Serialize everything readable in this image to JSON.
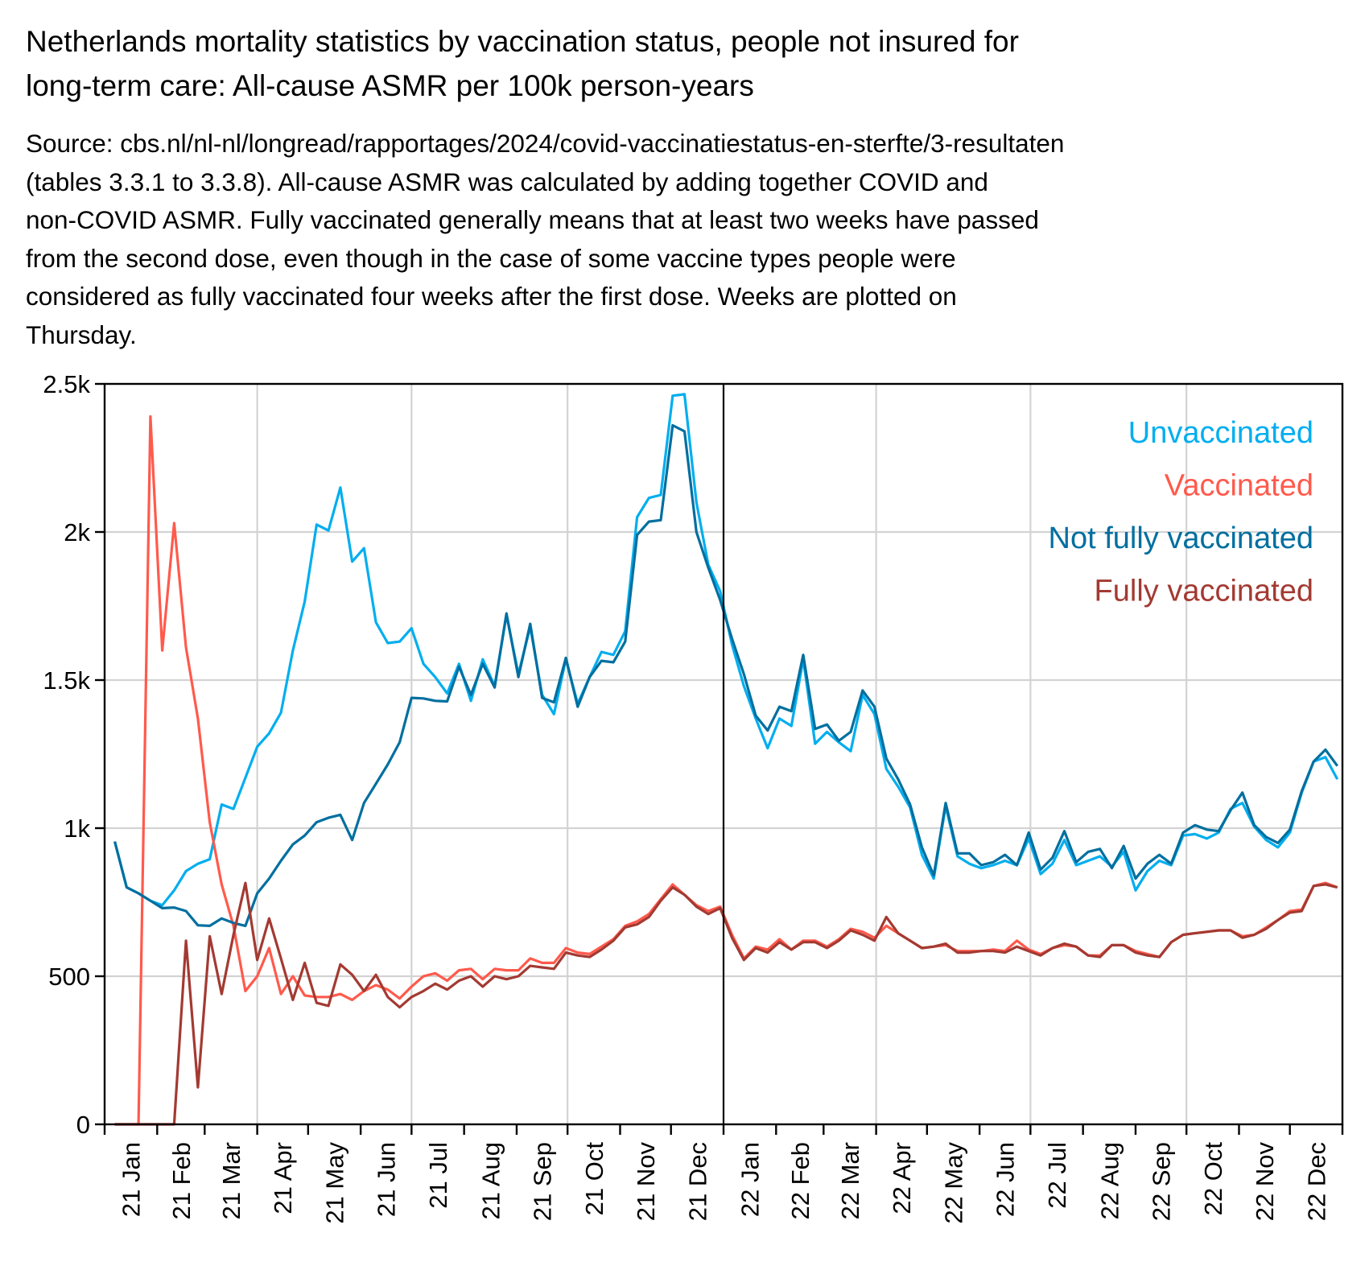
{
  "title": [
    "Netherlands mortality statistics by vaccination status, people not insured for",
    "long-term care: All-cause ASMR per 100k person-years"
  ],
  "subtitle": [
    "Source: cbs.nl/nl-nl/longread/rapportages/2024/covid-vaccinatiestatus-en-sterfte/3-resultaten",
    "(tables 3.3.1 to 3.3.8). All-cause ASMR was calculated by adding together COVID and",
    "non-COVID ASMR. Fully vaccinated generally means that at least two weeks have passed",
    "from the second dose, even though in the case of some vaccine types people were",
    "considered as fully vaccinated four weeks after the first dose. Weeks are plotted on",
    "Thursday."
  ],
  "chart_data": {
    "type": "line",
    "x_start": "2021-01-07",
    "x_step_days": 7,
    "xlim": [
      "2021-01-01",
      "2023-01-01"
    ],
    "ylim": [
      0,
      2500
    ],
    "yticks": [
      0,
      500,
      1000,
      1500,
      2000,
      2500
    ],
    "ytick_labels": [
      "0",
      "500",
      "1k",
      "1.5k",
      "2k",
      "2.5k"
    ],
    "xtick_labels": [
      "21 Jan",
      "21 Feb",
      "21 Mar",
      "21 Apr",
      "21 May",
      "21 Jun",
      "21 Jul",
      "21 Aug",
      "21 Sep",
      "21 Oct",
      "21 Nov",
      "21 Dec",
      "22 Jan",
      "22 Feb",
      "22 Mar",
      "22 Apr",
      "22 May",
      "22 Jun",
      "22 Jul",
      "22 Aug",
      "22 Sep",
      "22 Oct",
      "22 Nov",
      "22 Dec"
    ],
    "grid": true,
    "vertical_marker": "2022-01-01",
    "legend_position": "top-right",
    "series": [
      {
        "name": "Unvaccinated",
        "color": "#00AEEF",
        "values": [
          955,
          800,
          780,
          755,
          740,
          790,
          855,
          880,
          895,
          1080,
          1065,
          1170,
          1275,
          1320,
          1390,
          1600,
          1765,
          2025,
          2005,
          2150,
          1900,
          1945,
          1695,
          1625,
          1630,
          1675,
          1555,
          1510,
          1455,
          1555,
          1430,
          1570,
          1480,
          1720,
          1520,
          1680,
          1450,
          1385,
          1570,
          1420,
          1510,
          1595,
          1585,
          1665,
          2050,
          2115,
          2125,
          2460,
          2465,
          2100,
          1890,
          1800,
          1620,
          1480,
          1370,
          1270,
          1370,
          1345,
          1570,
          1285,
          1325,
          1290,
          1260,
          1450,
          1385,
          1200,
          1140,
          1070,
          910,
          830,
          1075,
          905,
          880,
          865,
          875,
          890,
          875,
          965,
          845,
          880,
          960,
          875,
          890,
          905,
          870,
          920,
          790,
          855,
          890,
          875,
          975,
          980,
          965,
          985,
          1065,
          1085,
          1005,
          960,
          935,
          985,
          1120,
          1225,
          1240,
          1165
        ]
      },
      {
        "name": "Vaccinated",
        "color": "#FF5A4C",
        "values": [
          0,
          0,
          0,
          2390,
          1600,
          2030,
          1610,
          1370,
          1020,
          810,
          670,
          450,
          500,
          595,
          440,
          500,
          435,
          430,
          430,
          440,
          420,
          450,
          470,
          455,
          425,
          465,
          500,
          510,
          485,
          520,
          525,
          490,
          525,
          520,
          520,
          560,
          545,
          545,
          595,
          580,
          575,
          600,
          625,
          670,
          685,
          710,
          760,
          810,
          775,
          740,
          720,
          735,
          640,
          560,
          600,
          590,
          625,
          590,
          620,
          620,
          600,
          625,
          660,
          650,
          630,
          670,
          645,
          620,
          595,
          600,
          605,
          585,
          585,
          585,
          590,
          585,
          620,
          590,
          575,
          595,
          605,
          600,
          570,
          570,
          605,
          605,
          585,
          575,
          565,
          615,
          640,
          645,
          650,
          655,
          655,
          635,
          640,
          665,
          690,
          720,
          725,
          805,
          815,
          800
        ]
      },
      {
        "name": "Not fully vaccinated",
        "color": "#006F9F",
        "values": [
          955,
          800,
          780,
          755,
          730,
          732,
          720,
          672,
          670,
          695,
          680,
          670,
          780,
          830,
          890,
          945,
          975,
          1020,
          1035,
          1045,
          960,
          1085,
          1150,
          1215,
          1290,
          1440,
          1438,
          1430,
          1428,
          1545,
          1450,
          1555,
          1475,
          1725,
          1510,
          1690,
          1440,
          1425,
          1575,
          1410,
          1510,
          1565,
          1560,
          1630,
          1990,
          2035,
          2040,
          2360,
          2340,
          2000,
          1880,
          1770,
          1640,
          1520,
          1380,
          1330,
          1410,
          1395,
          1585,
          1335,
          1350,
          1295,
          1325,
          1465,
          1410,
          1235,
          1165,
          1080,
          935,
          840,
          1085,
          915,
          915,
          875,
          885,
          910,
          875,
          985,
          860,
          900,
          990,
          885,
          920,
          930,
          865,
          940,
          830,
          880,
          910,
          880,
          985,
          1010,
          995,
          990,
          1060,
          1120,
          1010,
          970,
          950,
          995,
          1125,
          1225,
          1265,
          1210
        ]
      },
      {
        "name": "Fully vaccinated",
        "color": "#A33A32",
        "values": [
          0,
          0,
          0,
          0,
          0,
          0,
          620,
          125,
          635,
          440,
          640,
          815,
          555,
          695,
          560,
          420,
          545,
          410,
          400,
          540,
          505,
          450,
          505,
          430,
          395,
          430,
          450,
          475,
          455,
          485,
          500,
          465,
          500,
          490,
          500,
          535,
          530,
          525,
          580,
          570,
          565,
          590,
          620,
          665,
          675,
          700,
          755,
          800,
          775,
          735,
          710,
          730,
          630,
          555,
          595,
          580,
          615,
          590,
          615,
          615,
          595,
          620,
          655,
          640,
          620,
          700,
          645,
          620,
          595,
          600,
          610,
          580,
          580,
          585,
          585,
          580,
          600,
          585,
          570,
          595,
          610,
          600,
          570,
          565,
          605,
          605,
          580,
          570,
          565,
          615,
          640,
          645,
          650,
          655,
          655,
          630,
          640,
          660,
          690,
          715,
          720,
          805,
          810,
          800
        ]
      }
    ]
  }
}
